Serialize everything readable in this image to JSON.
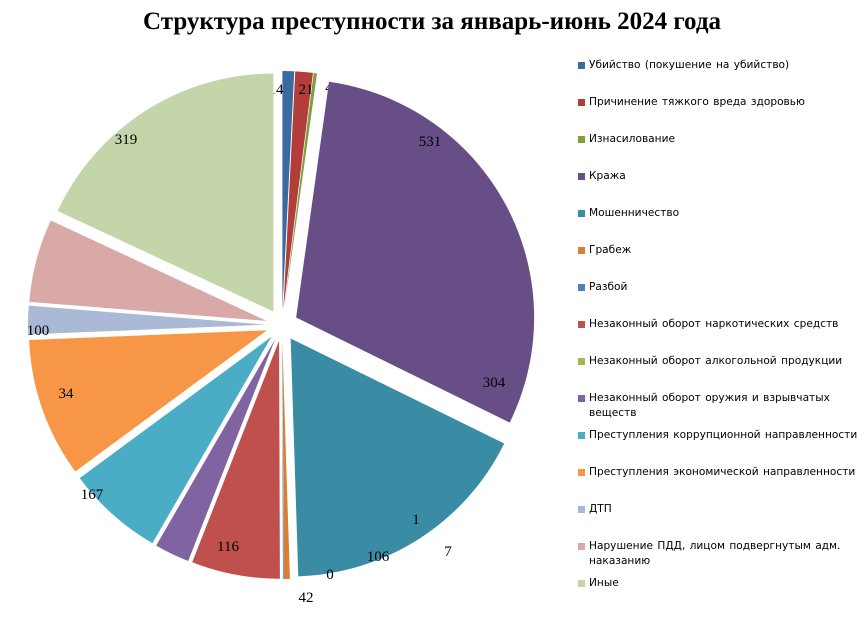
{
  "chart_data": {
    "type": "pie",
    "title": "Структура преступности за январь-июнь 2024 года",
    "exploded": true,
    "legend_position": "right",
    "slices": [
      {
        "label": "Убийство (покушение  на убийство)",
        "value": 14,
        "color": "#3b6aa0"
      },
      {
        "label": "Причинение  тяжкого вреда здоровью",
        "value": 21,
        "color": "#b33d3a"
      },
      {
        "label": "Изнасилование",
        "value": 4,
        "color": "#7f9e3e"
      },
      {
        "label": "Кража",
        "value": 531,
        "color": "#684e86"
      },
      {
        "label": "Мошенничество",
        "value": 304,
        "color": "#3a8ca4"
      },
      {
        "label": "Грабеж",
        "value": 7,
        "color": "#d87f35"
      },
      {
        "label": "Разбой",
        "value": 1,
        "color": "#4f81bd"
      },
      {
        "label": "Незаконный оборот наркотических средств",
        "value": 106,
        "color": "#c0504d"
      },
      {
        "label": "Незаконный оборот алкогольной продукции",
        "value": 0,
        "color": "#9bbb59"
      },
      {
        "label": "Незаконный оборот оружия и взрывчатых веществ",
        "value": 42,
        "color": "#8064a2"
      },
      {
        "label": "Преступления  коррупционной направленности",
        "value": 116,
        "color": "#4bacc6"
      },
      {
        "label": "Преступления  экономической направленности",
        "value": 167,
        "color": "#f79646"
      },
      {
        "label": "ДТП",
        "value": 34,
        "color": "#aab9d6"
      },
      {
        "label": "Нарушение  ПДД,  лицом подвергнутым адм. наказанию",
        "value": 100,
        "color": "#d9a9a8"
      },
      {
        "label": "Иные",
        "value": 319,
        "color": "#c4d5aa"
      }
    ]
  }
}
